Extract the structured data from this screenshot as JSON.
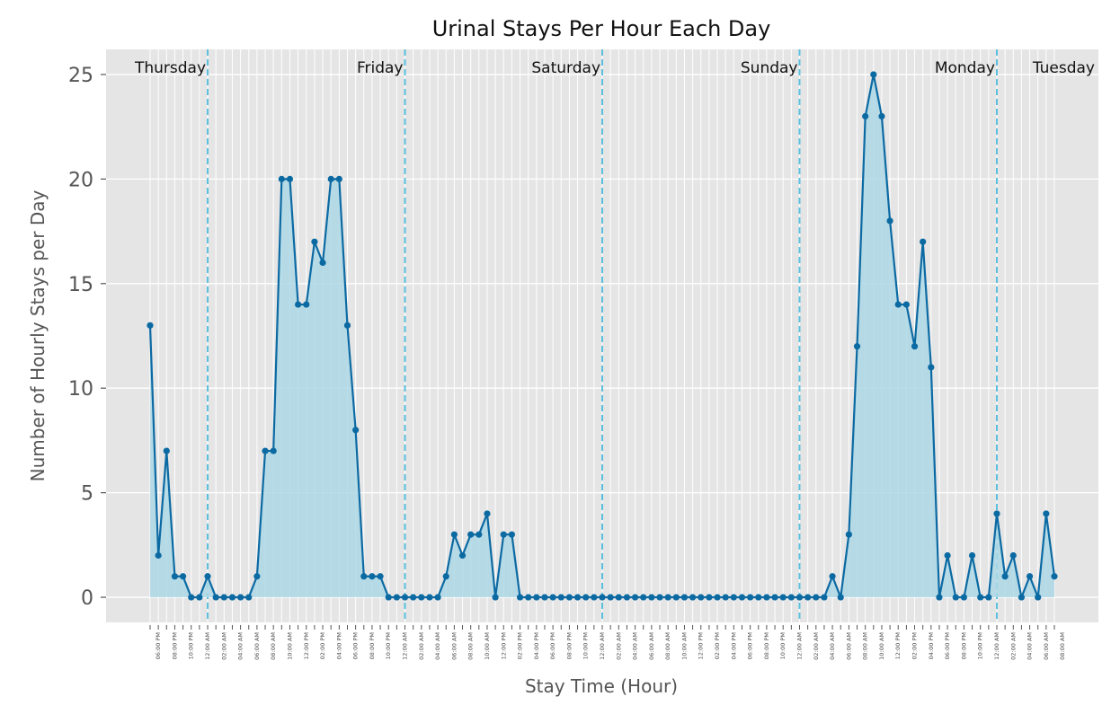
{
  "chart_data": {
    "type": "area",
    "title": "Urinal Stays Per Hour Each Day",
    "xlabel": "Stay Time (Hour)",
    "ylabel": "Number of Hourly Stays per Day",
    "ylim": [
      -1.2,
      26.2
    ],
    "yticks": [
      0,
      5,
      10,
      15,
      20,
      25
    ],
    "grid": true,
    "start_hour": 17,
    "series": [
      {
        "values": [
          13,
          2,
          7,
          1,
          1,
          0,
          0,
          1,
          0,
          0,
          0,
          0,
          0,
          1,
          7,
          7,
          20,
          20,
          14,
          14,
          17,
          16,
          20,
          20,
          13,
          8,
          1,
          1,
          1,
          0,
          0,
          0,
          0,
          0,
          0,
          0,
          1,
          3,
          2,
          3,
          3,
          4,
          0,
          3,
          3,
          0,
          0,
          0,
          0,
          0,
          0,
          0,
          0,
          0,
          0,
          0,
          0,
          0,
          0,
          0,
          0,
          0,
          0,
          0,
          0,
          0,
          0,
          0,
          0,
          0,
          0,
          0,
          0,
          0,
          0,
          0,
          0,
          0,
          0,
          0,
          0,
          0,
          0,
          1,
          0,
          3,
          12,
          23,
          25,
          23,
          18,
          14,
          14,
          12,
          17,
          11,
          0,
          2,
          0,
          0,
          2,
          0,
          0,
          4,
          1,
          2,
          0,
          1,
          0,
          4,
          1
        ],
        "color": "#0c6aa3",
        "fill_color": "#add8e6"
      }
    ],
    "x_tick_labels": [
      "06:00 PM",
      "08:00 PM",
      "10:00 PM",
      "12:00 AM",
      "02:00 AM",
      "04:00 AM",
      "06:00 AM",
      "08:00 AM",
      "10:00 AM",
      "12:00 PM",
      "02:00 PM",
      "04:00 PM",
      "06:00 PM",
      "08:00 PM",
      "10:00 PM",
      "12:00 AM",
      "02:00 AM",
      "04:00 AM",
      "06:00 AM",
      "08:00 AM",
      "10:00 AM",
      "12:00 PM",
      "02:00 PM",
      "04:00 PM",
      "06:00 PM",
      "08:00 PM",
      "10:00 PM",
      "12:00 AM",
      "02:00 AM",
      "04:00 AM",
      "06:00 AM",
      "08:00 AM",
      "10:00 AM",
      "12:00 PM",
      "02:00 PM",
      "04:00 PM",
      "06:00 PM",
      "08:00 PM",
      "10:00 PM",
      "12:00 AM",
      "02:00 AM",
      "04:00 AM",
      "06:00 AM",
      "08:00 AM",
      "10:00 AM",
      "12:00 PM",
      "02:00 PM",
      "04:00 PM",
      "06:00 PM",
      "08:00 PM",
      "10:00 PM",
      "12:00 AM",
      "02:00 AM",
      "04:00 AM",
      "06:00 AM",
      "08:00 AM"
    ],
    "day_annotations": [
      "Thursday",
      "Friday",
      "Saturday",
      "Sunday",
      "Monday",
      "Tuesday"
    ],
    "day_boundary_color": "#5bc0de"
  }
}
